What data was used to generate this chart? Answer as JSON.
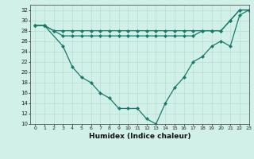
{
  "line1_x": [
    0,
    1,
    2,
    3,
    4,
    5,
    6,
    7,
    8,
    9,
    10,
    11,
    12,
    13,
    14,
    15,
    16,
    17,
    18,
    19,
    20,
    21,
    22,
    23
  ],
  "line1_y": [
    29,
    29,
    28,
    28,
    28,
    28,
    28,
    28,
    28,
    28,
    28,
    28,
    28,
    28,
    28,
    28,
    28,
    28,
    28,
    28,
    28,
    30,
    32,
    32
  ],
  "line2_x": [
    0,
    1,
    3,
    4,
    5,
    6,
    7,
    8,
    9,
    10,
    11,
    12,
    13,
    14,
    15,
    16,
    17,
    18,
    19,
    20,
    21,
    22,
    23
  ],
  "line2_y": [
    29,
    29,
    25,
    21,
    19,
    18,
    16,
    15,
    13,
    13,
    13,
    11,
    10,
    14,
    17,
    19,
    22,
    23,
    25,
    26,
    25,
    31,
    32
  ],
  "line3_x": [
    0,
    1,
    2,
    3,
    4,
    5,
    6,
    7,
    8,
    9,
    10,
    11,
    12,
    13,
    14,
    15,
    16,
    17,
    18,
    19,
    20,
    21,
    22,
    23
  ],
  "line3_y": [
    29,
    29,
    28,
    27,
    27,
    27,
    27,
    27,
    27,
    27,
    27,
    27,
    27,
    27,
    27,
    27,
    27,
    27,
    28,
    28,
    28,
    30,
    32,
    32
  ],
  "color": "#1a7a6a",
  "bg_color": "#d0f0e8",
  "grid_major_color": "#b8ddd4",
  "grid_minor_color": "#c8eae0",
  "xlabel": "Humidex (Indice chaleur)",
  "ylim": [
    10,
    33
  ],
  "xlim": [
    -0.5,
    23
  ],
  "yticks": [
    10,
    12,
    14,
    16,
    18,
    20,
    22,
    24,
    26,
    28,
    30,
    32
  ],
  "xticks": [
    0,
    1,
    2,
    3,
    4,
    5,
    6,
    7,
    8,
    9,
    10,
    11,
    12,
    13,
    14,
    15,
    16,
    17,
    18,
    19,
    20,
    21,
    22,
    23
  ]
}
